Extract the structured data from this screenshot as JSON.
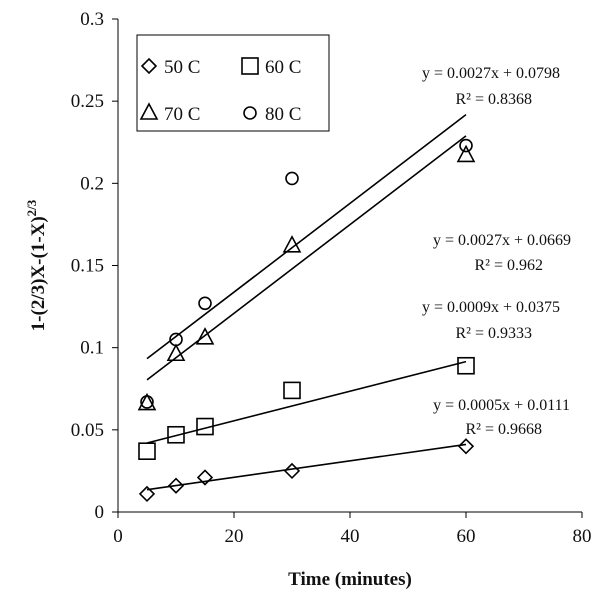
{
  "chart_data": {
    "type": "scatter",
    "title": "",
    "xlabel": "Time (minutes)",
    "ylabel": "1-(2/3)X-(1-X)",
    "ylabel_superscript": "2/3",
    "xlim": [
      0,
      80
    ],
    "ylim": [
      0,
      0.3
    ],
    "x_ticks": [
      "0",
      "20",
      "40",
      "60",
      "80"
    ],
    "y_ticks": [
      "0",
      "0.05",
      "0.1",
      "0.15",
      "0.2",
      "0.25",
      "0.3"
    ],
    "grid": false,
    "legend_position": "top-left",
    "series": [
      {
        "name": "50 C",
        "marker": "diamond",
        "points": [
          [
            5,
            0.011
          ],
          [
            10,
            0.016
          ],
          [
            15,
            0.021
          ],
          [
            30,
            0.025
          ],
          [
            60,
            0.04
          ]
        ],
        "trendline": {
          "slope": 0.0005,
          "intercept": 0.0111
        },
        "equation": "y = 0.0005x + 0.0111",
        "r2": "R² = 0.9668"
      },
      {
        "name": "60 C",
        "marker": "square",
        "points": [
          [
            5,
            0.037
          ],
          [
            10,
            0.047
          ],
          [
            15,
            0.052
          ],
          [
            30,
            0.074
          ],
          [
            60,
            0.089
          ]
        ],
        "trendline": {
          "slope": 0.0009,
          "intercept": 0.0375
        },
        "equation": "y = 0.0009x + 0.0375",
        "r2": "R² = 0.9333"
      },
      {
        "name": "70 C",
        "marker": "triangle",
        "points": [
          [
            5,
            0.066
          ],
          [
            10,
            0.096
          ],
          [
            15,
            0.106
          ],
          [
            30,
            0.162
          ],
          [
            60,
            0.217
          ]
        ],
        "trendline": {
          "slope": 0.0027,
          "intercept": 0.0669
        },
        "equation": "y = 0.0027x + 0.0669",
        "r2": "R² = 0.962"
      },
      {
        "name": "80 C",
        "marker": "circle",
        "points": [
          [
            5,
            0.067
          ],
          [
            10,
            0.105
          ],
          [
            15,
            0.127
          ],
          [
            30,
            0.203
          ],
          [
            60,
            0.223
          ]
        ],
        "trendline": {
          "slope": 0.0027,
          "intercept": 0.0798
        },
        "equation": "y = 0.0027x + 0.0798",
        "r2": "R² = 0.8368"
      }
    ]
  }
}
